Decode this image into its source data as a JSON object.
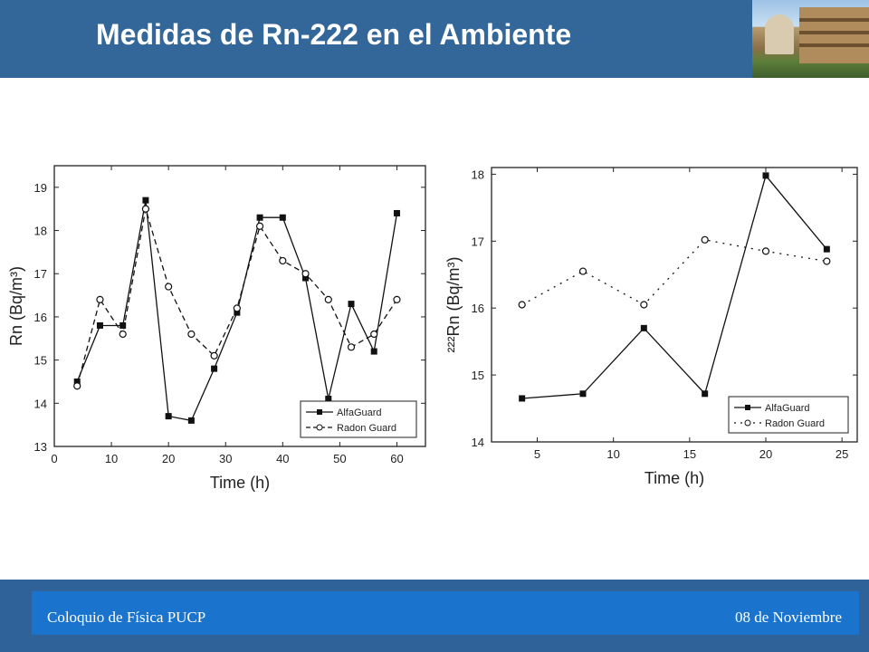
{
  "header": {
    "title": "Medidas de Rn-222 en el Ambiente",
    "photo_icon": "building-photo-icon",
    "background": "#336699"
  },
  "footer": {
    "left_text": "Coloquio de Física PUCP",
    "right_text": "08 de Noviembre",
    "background": "#1a73cc"
  },
  "chart_data": [
    {
      "type": "line",
      "xlabel": "Time (h)",
      "ylabel": "Rn (Bq/m³)",
      "xlim": [
        0,
        65
      ],
      "ylim": [
        13,
        19.5
      ],
      "xticks": [
        0,
        10,
        20,
        30,
        40,
        50,
        60
      ],
      "yticks": [
        13,
        14,
        15,
        16,
        17,
        18,
        19
      ],
      "legend": "bottom-right",
      "series": [
        {
          "name": "AlfaGuard",
          "style": "solid-square",
          "x": [
            4,
            8,
            12,
            16,
            20,
            24,
            28,
            32,
            36,
            40,
            44,
            48,
            52,
            56,
            60
          ],
          "values": [
            14.5,
            15.8,
            15.8,
            18.7,
            13.7,
            13.6,
            14.8,
            16.1,
            18.3,
            18.3,
            16.9,
            14.1,
            16.3,
            15.2,
            18.4
          ]
        },
        {
          "name": "Radon Guard",
          "style": "dashed-circle",
          "x": [
            4,
            8,
            12,
            16,
            20,
            24,
            28,
            32,
            36,
            40,
            44,
            48,
            52,
            56,
            60
          ],
          "values": [
            14.4,
            16.4,
            15.6,
            18.5,
            16.7,
            15.6,
            15.1,
            16.2,
            18.1,
            17.3,
            17.0,
            16.4,
            15.3,
            15.6,
            16.4
          ]
        }
      ]
    },
    {
      "type": "line",
      "xlabel": "Time (h)",
      "ylabel": "²²²Rn (Bq/m³)",
      "xlim": [
        2,
        26
      ],
      "ylim": [
        14,
        18.1
      ],
      "xticks": [
        5,
        10,
        15,
        20,
        25
      ],
      "yticks": [
        14,
        15,
        16,
        17,
        18
      ],
      "legend": "bottom-right",
      "series": [
        {
          "name": "AlfaGuard",
          "style": "solid-square",
          "x": [
            4,
            8,
            12,
            16,
            20,
            24
          ],
          "values": [
            14.65,
            14.72,
            15.7,
            14.72,
            17.98,
            16.88
          ]
        },
        {
          "name": "Radon Guard",
          "style": "dotted-circle",
          "x": [
            4,
            8,
            12,
            16,
            20,
            24
          ],
          "values": [
            16.05,
            16.55,
            16.05,
            17.02,
            16.85,
            16.7
          ]
        }
      ]
    }
  ]
}
